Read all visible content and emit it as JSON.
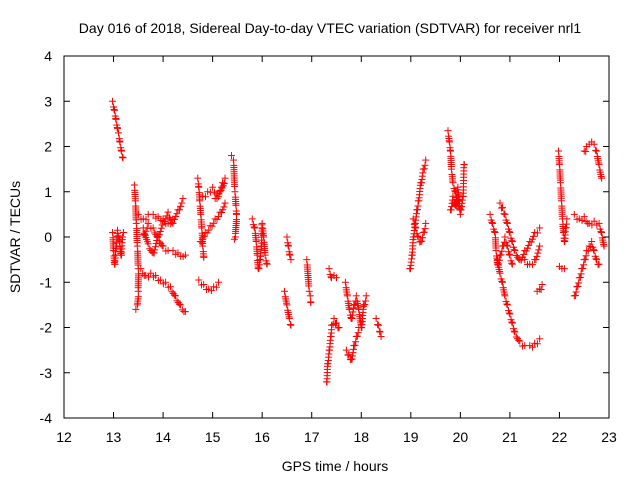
{
  "chart_data": {
    "type": "scatter",
    "title": "Day 016 of 2018, Sidereal Day-to-day VTEC variation (SDTVAR) for receiver nrl1",
    "xlabel": "GPS time / hours",
    "ylabel": "SDTVAR / TECUs",
    "xlim": [
      12,
      23
    ],
    "ylim": [
      -4,
      4
    ],
    "xticks": [
      "12",
      "13",
      "14",
      "15",
      "16",
      "17",
      "18",
      "19",
      "20",
      "21",
      "22",
      "23"
    ],
    "yticks": [
      "-4",
      "-3",
      "-2",
      "-1",
      "0",
      "1",
      "2",
      "3",
      "4"
    ],
    "marker": "+",
    "color": "#ff0000",
    "series": [
      {
        "name": "SDTVAR",
        "segments": [
          [
            [
              12.98,
              3.0
            ],
            [
              13.02,
              2.8
            ],
            [
              13.05,
              2.6
            ],
            [
              13.08,
              2.4
            ],
            [
              13.1,
              2.3
            ],
            [
              13.13,
              2.1
            ],
            [
              13.16,
              1.9
            ],
            [
              13.19,
              1.75
            ]
          ],
          [
            [
              12.98,
              0.1
            ],
            [
              13.0,
              -0.3
            ],
            [
              13.02,
              -0.6
            ],
            [
              13.05,
              -0.2
            ],
            [
              13.08,
              0.15
            ],
            [
              13.12,
              -0.1
            ],
            [
              13.15,
              -0.4
            ],
            [
              13.18,
              0.0
            ],
            [
              13.2,
              0.1
            ]
          ],
          [
            [
              13.42,
              1.15
            ],
            [
              13.44,
              0.8
            ],
            [
              13.46,
              0.3
            ],
            [
              13.48,
              -0.2
            ],
            [
              13.5,
              -0.7
            ],
            [
              13.5,
              -1.2
            ],
            [
              13.48,
              -1.5
            ],
            [
              13.45,
              -1.6
            ]
          ],
          [
            [
              13.5,
              0.5
            ],
            [
              13.6,
              0.4
            ],
            [
              13.7,
              0.5
            ],
            [
              13.8,
              0.5
            ],
            [
              13.9,
              0.45
            ],
            [
              14.0,
              0.4
            ],
            [
              14.1,
              0.3
            ],
            [
              14.2,
              0.4
            ],
            [
              14.3,
              0.6
            ],
            [
              14.4,
              0.85
            ]
          ],
          [
            [
              13.6,
              0.05
            ],
            [
              13.7,
              0.3
            ],
            [
              13.8,
              0.2
            ],
            [
              13.9,
              0.0
            ],
            [
              14.0,
              -0.2
            ],
            [
              14.1,
              -0.3
            ],
            [
              14.2,
              -0.3
            ],
            [
              14.3,
              -0.35
            ],
            [
              14.45,
              -0.4
            ]
          ],
          [
            [
              13.55,
              -0.7
            ],
            [
              13.65,
              -0.85
            ],
            [
              13.75,
              -0.8
            ],
            [
              13.85,
              -0.85
            ],
            [
              13.95,
              -0.95
            ],
            [
              14.05,
              -1.0
            ],
            [
              14.15,
              -1.1
            ],
            [
              14.25,
              -1.3
            ],
            [
              14.35,
              -1.5
            ],
            [
              14.45,
              -1.65
            ]
          ],
          [
            [
              13.6,
              0.2
            ],
            [
              13.7,
              -0.15
            ],
            [
              13.8,
              -0.35
            ],
            [
              13.9,
              0.05
            ],
            [
              14.0,
              0.35
            ],
            [
              14.1,
              0.55
            ],
            [
              14.2,
              0.3
            ]
          ],
          [
            [
              14.7,
              1.3
            ],
            [
              14.72,
              1.1
            ],
            [
              14.74,
              0.8
            ],
            [
              14.76,
              0.5
            ],
            [
              14.78,
              0.2
            ],
            [
              14.8,
              -0.2
            ],
            [
              14.82,
              -0.45
            ]
          ],
          [
            [
              14.72,
              -0.95
            ],
            [
              14.82,
              -1.05
            ],
            [
              14.92,
              -1.15
            ],
            [
              15.02,
              -1.1
            ],
            [
              15.12,
              -1.0
            ]
          ],
          [
            [
              14.8,
              0.9
            ],
            [
              14.9,
              1.0
            ],
            [
              15.0,
              1.1
            ],
            [
              15.1,
              0.95
            ],
            [
              15.2,
              1.2
            ],
            [
              15.25,
              1.3
            ],
            [
              15.15,
              1.0
            ],
            [
              15.05,
              0.85
            ]
          ],
          [
            [
              14.75,
              -0.1
            ],
            [
              14.85,
              0.1
            ],
            [
              14.95,
              0.25
            ],
            [
              15.05,
              0.4
            ],
            [
              15.15,
              0.55
            ],
            [
              15.25,
              0.75
            ]
          ],
          [
            [
              15.38,
              1.8
            ],
            [
              15.42,
              1.7
            ],
            [
              15.45,
              1.0
            ],
            [
              15.47,
              0.7
            ],
            [
              15.48,
              0.5
            ],
            [
              15.46,
              0.0
            ],
            [
              15.44,
              -0.05
            ]
          ],
          [
            [
              15.8,
              0.4
            ],
            [
              15.85,
              0.2
            ],
            [
              15.88,
              -0.1
            ],
            [
              15.9,
              -0.4
            ],
            [
              15.92,
              -0.7
            ],
            [
              15.95,
              -0.5
            ],
            [
              15.98,
              -0.2
            ],
            [
              16.0,
              0.3
            ],
            [
              16.03,
              0.0
            ],
            [
              16.06,
              -0.4
            ],
            [
              16.1,
              -0.6
            ]
          ],
          [
            [
              16.45,
              -1.2
            ],
            [
              16.5,
              -1.5
            ],
            [
              16.55,
              -1.8
            ],
            [
              16.58,
              -1.95
            ]
          ],
          [
            [
              16.5,
              0.0
            ],
            [
              16.53,
              -0.2
            ],
            [
              16.56,
              -0.4
            ],
            [
              16.58,
              -0.5
            ]
          ],
          [
            [
              16.9,
              -0.5
            ],
            [
              16.95,
              -1.2
            ],
            [
              16.97,
              -1.3
            ],
            [
              16.98,
              -1.45
            ]
          ],
          [
            [
              17.3,
              -3.2
            ],
            [
              17.32,
              -2.8
            ],
            [
              17.35,
              -2.5
            ],
            [
              17.38,
              -2.2
            ],
            [
              17.4,
              -1.95
            ],
            [
              17.45,
              -1.8
            ],
            [
              17.5,
              -1.9
            ],
            [
              17.55,
              -2.0
            ]
          ],
          [
            [
              17.35,
              -0.7
            ],
            [
              17.4,
              -0.9
            ],
            [
              17.45,
              -0.85
            ],
            [
              17.5,
              -0.9
            ]
          ],
          [
            [
              17.68,
              -1.0
            ],
            [
              17.72,
              -1.3
            ],
            [
              17.76,
              -1.6
            ],
            [
              17.8,
              -1.8
            ],
            [
              17.85,
              -1.5
            ],
            [
              17.9,
              -1.3
            ],
            [
              17.95,
              -1.6
            ],
            [
              18.0,
              -2.0
            ],
            [
              18.05,
              -1.5
            ],
            [
              18.1,
              -1.3
            ]
          ],
          [
            [
              17.7,
              -2.5
            ],
            [
              17.75,
              -2.6
            ],
            [
              17.8,
              -2.7
            ],
            [
              17.85,
              -2.4
            ],
            [
              17.9,
              -2.2
            ],
            [
              17.95,
              -2.0
            ]
          ],
          [
            [
              18.3,
              -1.8
            ],
            [
              18.35,
              -1.95
            ],
            [
              18.38,
              -2.1
            ],
            [
              18.4,
              -2.2
            ]
          ],
          [
            [
              18.98,
              -0.7
            ],
            [
              19.02,
              -0.4
            ],
            [
              19.05,
              0.0
            ],
            [
              19.08,
              0.3
            ],
            [
              19.12,
              0.6
            ],
            [
              19.15,
              0.8
            ],
            [
              19.2,
              1.2
            ],
            [
              19.25,
              1.5
            ],
            [
              19.3,
              1.7
            ]
          ],
          [
            [
              19.05,
              0.4
            ],
            [
              19.1,
              0.2
            ],
            [
              19.15,
              0.0
            ],
            [
              19.2,
              -0.1
            ],
            [
              19.25,
              0.1
            ],
            [
              19.3,
              0.3
            ]
          ],
          [
            [
              19.75,
              2.35
            ],
            [
              19.78,
              2.1
            ],
            [
              19.8,
              1.9
            ],
            [
              19.82,
              1.5
            ],
            [
              19.85,
              1.2
            ],
            [
              19.9,
              1.0
            ],
            [
              19.95,
              0.8
            ],
            [
              20.0,
              0.6
            ],
            [
              20.05,
              0.9
            ],
            [
              20.08,
              1.6
            ]
          ],
          [
            [
              19.8,
              0.6
            ],
            [
              19.85,
              0.9
            ],
            [
              19.9,
              0.7
            ],
            [
              19.95,
              1.1
            ],
            [
              20.0,
              0.5
            ]
          ],
          [
            [
              20.6,
              0.5
            ],
            [
              20.65,
              0.3
            ],
            [
              20.7,
              0.1
            ],
            [
              20.72,
              -0.3
            ],
            [
              20.75,
              -0.6
            ],
            [
              20.8,
              -0.4
            ],
            [
              20.85,
              -0.2
            ],
            [
              20.9,
              0.0
            ],
            [
              20.95,
              -0.2
            ],
            [
              21.0,
              -0.4
            ],
            [
              21.05,
              -0.6
            ]
          ],
          [
            [
              20.8,
              0.75
            ],
            [
              20.85,
              0.65
            ],
            [
              20.9,
              0.5
            ],
            [
              20.95,
              0.3
            ],
            [
              21.0,
              0.1
            ],
            [
              21.05,
              -0.1
            ],
            [
              21.1,
              -0.3
            ],
            [
              21.2,
              -0.5
            ],
            [
              21.3,
              -0.3
            ],
            [
              21.4,
              -0.1
            ],
            [
              21.5,
              0.1
            ],
            [
              21.6,
              0.2
            ]
          ],
          [
            [
              20.75,
              -0.5
            ],
            [
              20.8,
              -0.8
            ],
            [
              20.85,
              -1.0
            ],
            [
              20.9,
              -1.3
            ],
            [
              20.95,
              -1.5
            ],
            [
              21.0,
              -1.7
            ],
            [
              21.05,
              -1.9
            ],
            [
              21.1,
              -2.1
            ],
            [
              21.2,
              -2.3
            ],
            [
              21.3,
              -2.4
            ],
            [
              21.4,
              -2.4
            ],
            [
              21.5,
              -2.35
            ],
            [
              21.6,
              -2.25
            ]
          ],
          [
            [
              21.3,
              -0.5
            ],
            [
              21.4,
              -0.6
            ],
            [
              21.5,
              -0.5
            ],
            [
              21.6,
              -0.2
            ]
          ],
          [
            [
              21.55,
              -1.2
            ],
            [
              21.6,
              -1.15
            ],
            [
              21.65,
              -1.05
            ]
          ],
          [
            [
              21.98,
              1.9
            ],
            [
              22.0,
              1.6
            ],
            [
              22.02,
              1.2
            ],
            [
              22.04,
              0.8
            ],
            [
              22.06,
              0.4
            ],
            [
              22.08,
              0.1
            ],
            [
              22.1,
              -0.1
            ],
            [
              22.12,
              0.2
            ],
            [
              22.15,
              0.4
            ]
          ],
          [
            [
              22.0,
              -0.65
            ],
            [
              22.05,
              -0.7
            ],
            [
              22.1,
              -0.7
            ]
          ],
          [
            [
              22.3,
              -1.3
            ],
            [
              22.35,
              -1.1
            ],
            [
              22.4,
              -0.9
            ],
            [
              22.45,
              -0.7
            ],
            [
              22.5,
              -0.5
            ],
            [
              22.55,
              -0.3
            ],
            [
              22.6,
              -0.2
            ],
            [
              22.65,
              -0.1
            ],
            [
              22.7,
              -0.3
            ],
            [
              22.75,
              -0.5
            ],
            [
              22.8,
              -0.6
            ]
          ],
          [
            [
              22.3,
              0.5
            ],
            [
              22.4,
              0.4
            ],
            [
              22.5,
              0.45
            ],
            [
              22.6,
              0.3
            ],
            [
              22.7,
              0.35
            ],
            [
              22.8,
              0.3
            ],
            [
              22.85,
              0.1
            ],
            [
              22.9,
              -0.2
            ]
          ],
          [
            [
              22.5,
              1.9
            ],
            [
              22.55,
              2.0
            ],
            [
              22.6,
              2.05
            ],
            [
              22.65,
              2.1
            ],
            [
              22.7,
              2.05
            ],
            [
              22.75,
              1.9
            ],
            [
              22.8,
              1.6
            ],
            [
              22.85,
              1.3
            ]
          ]
        ]
      }
    ]
  }
}
